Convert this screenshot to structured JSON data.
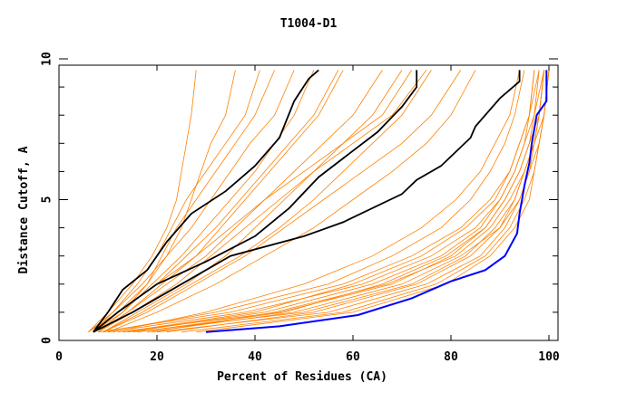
{
  "chart_data": {
    "type": "line",
    "title": "T1004-D1",
    "xlabel": "Percent of Residues (CA)",
    "ylabel": "Distance Cutoff, A",
    "xlim": [
      0,
      100
    ],
    "ylim": [
      0,
      10
    ],
    "x_ticks": [
      "0",
      "20",
      "40",
      "60",
      "80",
      "100"
    ],
    "y_ticks": [
      "0",
      "5",
      "10"
    ],
    "grid": false,
    "colors": {
      "models": "#ff8000",
      "reference": "#000000",
      "best": "#0000ff"
    },
    "orange_cutoff_levels": [
      0.3,
      1,
      2,
      3,
      4,
      5,
      6,
      7,
      8,
      9.6
    ],
    "orange_series_x": [
      [
        12,
        45,
        68,
        80,
        87,
        91,
        94,
        96,
        98,
        99
      ],
      [
        15,
        50,
        72,
        83,
        89,
        93,
        95,
        97,
        99,
        100
      ],
      [
        18,
        48,
        70,
        82,
        90,
        94,
        96,
        98,
        99,
        100
      ],
      [
        10,
        38,
        62,
        76,
        85,
        90,
        93,
        95,
        97,
        98
      ],
      [
        20,
        55,
        75,
        86,
        91,
        94,
        96,
        97,
        98,
        99
      ],
      [
        8,
        35,
        58,
        72,
        82,
        88,
        92,
        94,
        96,
        97
      ],
      [
        25,
        58,
        77,
        87,
        92,
        95,
        97,
        98,
        99,
        100
      ],
      [
        14,
        42,
        64,
        78,
        86,
        90,
        93,
        95,
        96,
        97
      ],
      [
        22,
        52,
        73,
        84,
        90,
        93,
        95,
        97,
        98,
        99
      ],
      [
        9,
        32,
        55,
        68,
        78,
        84,
        88,
        91,
        93,
        95
      ],
      [
        28,
        60,
        79,
        88,
        93,
        96,
        97,
        98,
        99,
        100
      ],
      [
        16,
        46,
        66,
        79,
        87,
        91,
        94,
        96,
        97,
        99
      ],
      [
        11,
        30,
        50,
        64,
        74,
        81,
        86,
        89,
        92,
        94
      ],
      [
        19,
        44,
        67,
        81,
        88,
        92,
        95,
        97,
        98,
        99
      ],
      [
        13,
        40,
        60,
        74,
        83,
        89,
        92,
        94,
        96,
        98
      ],
      [
        7,
        12,
        20,
        26,
        32,
        37,
        42,
        47,
        52,
        57
      ],
      [
        8,
        14,
        22,
        30,
        36,
        42,
        48,
        54,
        60,
        66
      ],
      [
        6,
        11,
        17,
        22,
        27,
        31,
        35,
        39,
        44,
        48
      ],
      [
        9,
        16,
        26,
        34,
        40,
        46,
        52,
        58,
        64,
        70
      ],
      [
        7,
        13,
        19,
        25,
        30,
        35,
        40,
        44,
        48,
        52
      ],
      [
        8,
        15,
        24,
        31,
        38,
        45,
        52,
        60,
        68,
        75
      ],
      [
        6,
        10,
        15,
        19,
        22,
        24,
        25,
        26,
        27,
        28
      ],
      [
        7,
        12,
        18,
        22,
        25,
        27,
        29,
        31,
        34,
        36
      ],
      [
        9,
        18,
        28,
        38,
        46,
        54,
        62,
        70,
        76,
        82
      ],
      [
        8,
        14,
        21,
        28,
        33,
        38,
        43,
        48,
        53,
        58
      ],
      [
        7,
        11,
        16,
        20,
        23,
        26,
        30,
        34,
        38,
        41
      ],
      [
        10,
        20,
        32,
        42,
        52,
        60,
        68,
        75,
        80,
        85
      ],
      [
        6,
        12,
        20,
        28,
        35,
        42,
        50,
        58,
        66,
        72
      ],
      [
        8,
        13,
        18,
        21,
        24,
        28,
        32,
        36,
        40,
        44
      ],
      [
        9,
        17,
        27,
        37,
        45,
        52,
        58,
        64,
        70,
        76
      ]
    ],
    "reference_series": [
      {
        "name": "black-1",
        "points": [
          [
            7,
            0.3
          ],
          [
            10,
            1
          ],
          [
            13,
            1.8
          ],
          [
            18,
            2.5
          ],
          [
            22,
            3.5
          ],
          [
            27,
            4.5
          ],
          [
            34,
            5.3
          ],
          [
            40,
            6.2
          ],
          [
            45,
            7.2
          ],
          [
            48,
            8.5
          ],
          [
            51,
            9.3
          ],
          [
            53,
            9.6
          ]
        ]
      },
      {
        "name": "black-2",
        "points": [
          [
            7,
            0.3
          ],
          [
            12,
            1
          ],
          [
            20,
            2
          ],
          [
            30,
            2.8
          ],
          [
            40,
            3.7
          ],
          [
            47,
            4.7
          ],
          [
            53,
            5.8
          ],
          [
            59,
            6.6
          ],
          [
            65,
            7.4
          ],
          [
            70,
            8.3
          ],
          [
            73,
            9
          ],
          [
            73,
            9.6
          ]
        ]
      },
      {
        "name": "black-3",
        "points": [
          [
            7,
            0.3
          ],
          [
            15,
            1
          ],
          [
            25,
            2
          ],
          [
            35,
            3
          ],
          [
            50,
            3.7
          ],
          [
            58,
            4.2
          ],
          [
            70,
            5.2
          ],
          [
            73,
            5.7
          ],
          [
            78,
            6.2
          ],
          [
            84,
            7.2
          ],
          [
            85,
            7.6
          ],
          [
            90,
            8.6
          ],
          [
            94,
            9.2
          ],
          [
            94,
            9.6
          ]
        ]
      }
    ],
    "best_series": {
      "name": "blue",
      "points": [
        [
          30,
          0.3
        ],
        [
          45,
          0.5
        ],
        [
          61,
          0.9
        ],
        [
          72,
          1.5
        ],
        [
          80,
          2.1
        ],
        [
          87,
          2.5
        ],
        [
          91,
          3
        ],
        [
          93.5,
          3.8
        ],
        [
          94,
          4.5
        ],
        [
          95,
          5.5
        ],
        [
          96,
          6.3
        ],
        [
          96.5,
          7
        ],
        [
          97.5,
          8
        ],
        [
          99.5,
          8.5
        ],
        [
          99.5,
          9.6
        ]
      ]
    }
  }
}
